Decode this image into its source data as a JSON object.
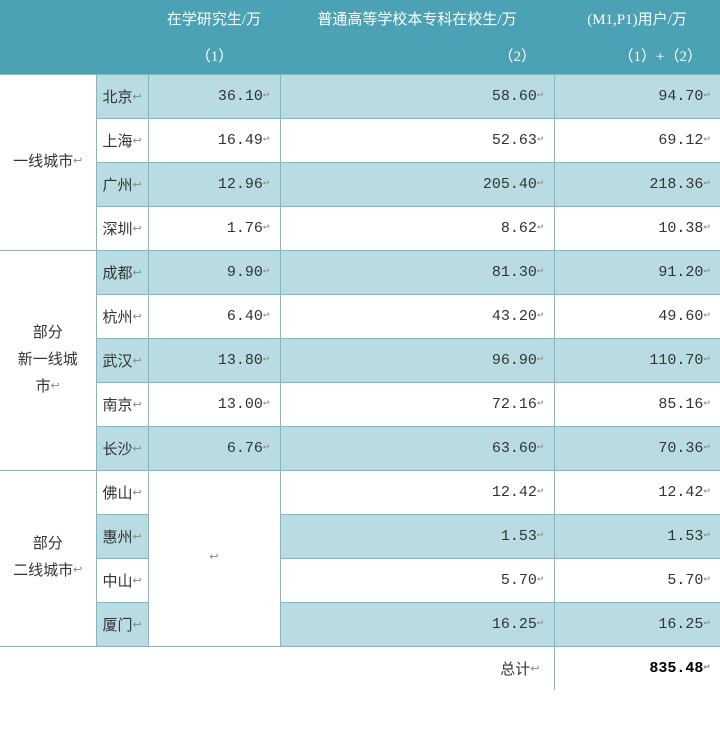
{
  "header": {
    "blank": "",
    "col1": "在学研究生/万",
    "col2": "普通高等学校本专科在校生/万",
    "col3": "(M1,P1)用户/万",
    "sub1": "（1）",
    "sub2": "（2）",
    "sub3": "（1）+（2）"
  },
  "groups": [
    {
      "label": "一线城市",
      "rows": [
        {
          "city": "北京",
          "c1": "36.10",
          "c2": "58.60",
          "c3": "94.70",
          "alt": "a"
        },
        {
          "city": "上海",
          "c1": "16.49",
          "c2": "52.63",
          "c3": "69.12",
          "alt": "b"
        },
        {
          "city": "广州",
          "c1": "12.96",
          "c2": "205.40",
          "c3": "218.36",
          "alt": "a"
        },
        {
          "city": "深圳",
          "c1": "1.76",
          "c2": "8.62",
          "c3": "10.38",
          "alt": "b"
        }
      ]
    },
    {
      "label": "部分\n新一线城\n市",
      "rows": [
        {
          "city": "成都",
          "c1": "9.90",
          "c2": "81.30",
          "c3": "91.20",
          "alt": "a"
        },
        {
          "city": "杭州",
          "c1": "6.40",
          "c2": "43.20",
          "c3": "49.60",
          "alt": "b"
        },
        {
          "city": "武汉",
          "c1": "13.80",
          "c2": "96.90",
          "c3": "110.70",
          "alt": "a"
        },
        {
          "city": "南京",
          "c1": "13.00",
          "c2": "72.16",
          "c3": "85.16",
          "alt": "b"
        },
        {
          "city": "长沙",
          "c1": "6.76",
          "c2": "63.60",
          "c3": "70.36",
          "alt": "a"
        }
      ]
    },
    {
      "label": "部分\n二线城市",
      "merged_c1": true,
      "rows": [
        {
          "city": "佛山",
          "c1": "",
          "c2": "12.42",
          "c3": "12.42",
          "alt": "b"
        },
        {
          "city": "惠州",
          "c1": "",
          "c2": "1.53",
          "c3": "1.53",
          "alt": "a"
        },
        {
          "city": "中山",
          "c1": "",
          "c2": "5.70",
          "c3": "5.70",
          "alt": "b"
        },
        {
          "city": "厦门",
          "c1": "",
          "c2": "16.25",
          "c3": "16.25",
          "alt": "a"
        }
      ]
    }
  ],
  "total": {
    "label": "总计",
    "value": "835.48"
  },
  "colors": {
    "header_bg": "#4ba2b4",
    "row_alt_bg": "#b9dce3",
    "border": "#7fb8c5"
  },
  "col_widths": {
    "group": 96,
    "city": 52,
    "c1": 132,
    "c2": 274,
    "c3": 166
  }
}
